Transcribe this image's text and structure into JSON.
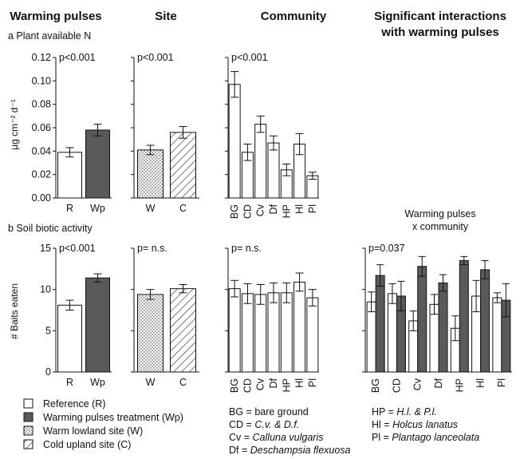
{
  "headers": {
    "warming": "Warming pulses",
    "site": "Site",
    "community": "Community",
    "interactions_line1": "Significant interactions",
    "interactions_line2": "with warming pulses"
  },
  "panel_labels": {
    "a": "a  Plant available N",
    "b": "b  Soil biotic activity"
  },
  "interaction_note": {
    "line1": "Warming pulses",
    "line2": "x community"
  },
  "colors": {
    "dark": "#5a5a5a",
    "white": "#ffffff",
    "axis": "#111111"
  },
  "chart_data": [
    {
      "type": "bar",
      "row": "a",
      "column": "warming",
      "ylabel": "µg cm⁻² d⁻¹",
      "ylim": [
        0,
        0.12
      ],
      "yticks": [
        "0.00",
        "0.02",
        "0.04",
        "0.06",
        "0.08",
        "0.10",
        "0.12"
      ],
      "categories": [
        "R",
        "Wp"
      ],
      "show_categories": true,
      "series": [
        {
          "values": [
            0.039,
            0.058
          ],
          "errors": [
            0.004,
            0.005
          ],
          "fills": [
            "white",
            "dark"
          ]
        }
      ],
      "annotation": "p<0.001"
    },
    {
      "type": "bar",
      "row": "a",
      "column": "site",
      "ylim": [
        0,
        0.12
      ],
      "categories": [
        "W",
        "C"
      ],
      "show_categories": true,
      "series": [
        {
          "values": [
            0.041,
            0.056
          ],
          "errors": [
            0.004,
            0.005
          ],
          "fills": [
            "dots",
            "hatch"
          ]
        }
      ],
      "annotation": "p<0.001"
    },
    {
      "type": "bar",
      "row": "a",
      "column": "community",
      "ylim": [
        0,
        0.12
      ],
      "categories": [
        "BG",
        "CD",
        "Cv",
        "Df",
        "HP",
        "Hl",
        "Pl"
      ],
      "show_categories": true,
      "series": [
        {
          "values": [
            0.097,
            0.039,
            0.063,
            0.047,
            0.024,
            0.046,
            0.019
          ],
          "errors": [
            0.011,
            0.007,
            0.007,
            0.006,
            0.005,
            0.009,
            0.003
          ],
          "fills": [
            "white",
            "white",
            "white",
            "white",
            "white",
            "white",
            "white"
          ]
        }
      ],
      "annotation": "p<0.001"
    },
    {
      "type": "bar",
      "row": "b",
      "column": "warming",
      "ylabel": "# Baits eaten",
      "ylim": [
        0,
        15
      ],
      "yticks": [
        "0",
        "5",
        "10",
        "15"
      ],
      "categories": [
        "R",
        "Wp"
      ],
      "show_categories": true,
      "series": [
        {
          "values": [
            8.1,
            11.4
          ],
          "errors": [
            0.6,
            0.5
          ],
          "fills": [
            "white",
            "dark"
          ]
        }
      ],
      "annotation": "p<0.001"
    },
    {
      "type": "bar",
      "row": "b",
      "column": "site",
      "ylim": [
        0,
        15
      ],
      "categories": [
        "W",
        "C"
      ],
      "show_categories": true,
      "series": [
        {
          "values": [
            9.4,
            10.1
          ],
          "errors": [
            0.6,
            0.5
          ],
          "fills": [
            "dots",
            "hatch"
          ]
        }
      ],
      "annotation": "p= n.s."
    },
    {
      "type": "bar",
      "row": "b",
      "column": "community",
      "ylim": [
        0,
        15
      ],
      "categories": [
        "BG",
        "CD",
        "Cv",
        "Df",
        "HP",
        "Hl",
        "Pl"
      ],
      "show_categories": true,
      "series": [
        {
          "values": [
            10.1,
            9.5,
            9.4,
            9.6,
            9.6,
            10.9,
            9.0
          ],
          "errors": [
            1.0,
            1.2,
            1.2,
            1.2,
            1.2,
            1.1,
            1.0
          ],
          "fills": [
            "white",
            "white",
            "white",
            "white",
            "white",
            "white",
            "white"
          ]
        }
      ],
      "annotation": "p= n.s."
    },
    {
      "type": "bar",
      "row": "b",
      "column": "interaction",
      "ylim": [
        0,
        15
      ],
      "categories": [
        "BG",
        "CD",
        "Cv",
        "Df",
        "HP",
        "Hl",
        "Pl"
      ],
      "show_categories": true,
      "series": [
        {
          "values": [
            8.5,
            9.5,
            6.2,
            8.2,
            5.3,
            9.2,
            9.0
          ],
          "errors": [
            1.2,
            1.2,
            1.2,
            1.2,
            1.5,
            1.9,
            0.6
          ],
          "fills": [
            "white",
            "white",
            "white",
            "white",
            "white",
            "white",
            "white"
          ]
        },
        {
          "values": [
            11.7,
            9.2,
            12.8,
            10.8,
            13.5,
            12.4,
            8.7
          ],
          "errors": [
            1.3,
            1.8,
            1.2,
            1.0,
            0.5,
            1.1,
            2.0
          ],
          "fills": [
            "dark",
            "dark",
            "dark",
            "dark",
            "dark",
            "dark",
            "dark"
          ]
        }
      ],
      "annotation": "p=0.037"
    }
  ],
  "legend": {
    "fills": [
      {
        "fill": "white",
        "label": "Reference (R)"
      },
      {
        "fill": "dark",
        "label": "Warming pulses treatment (Wp)"
      },
      {
        "fill": "dots",
        "label": "Warm lowland site (W)"
      },
      {
        "fill": "hatch",
        "label": "Cold upland site (C)"
      }
    ],
    "abbrev_col1": [
      {
        "code": "BG",
        "sep": " = ",
        "text": "bare ground",
        "italic": false
      },
      {
        "code": "CD",
        "sep": " = ",
        "text": "C.v. & D.f.",
        "italic": true
      },
      {
        "code": "Cv",
        "sep": " = ",
        "text": "Calluna vulgaris",
        "italic": true
      },
      {
        "code": "Df",
        "sep": " = ",
        "text": "Deschampsia flexuosa",
        "italic": true
      }
    ],
    "abbrev_col2": [
      {
        "code": "HP",
        "sep": " = ",
        "text": "H.l. & P.l.",
        "italic": true
      },
      {
        "code": "Hl",
        "sep": " = ",
        "text": "Holcus lanatus",
        "italic": true
      },
      {
        "code": "Pl",
        "sep": " = ",
        "text": "Plantago lanceolata",
        "italic": true
      }
    ]
  }
}
